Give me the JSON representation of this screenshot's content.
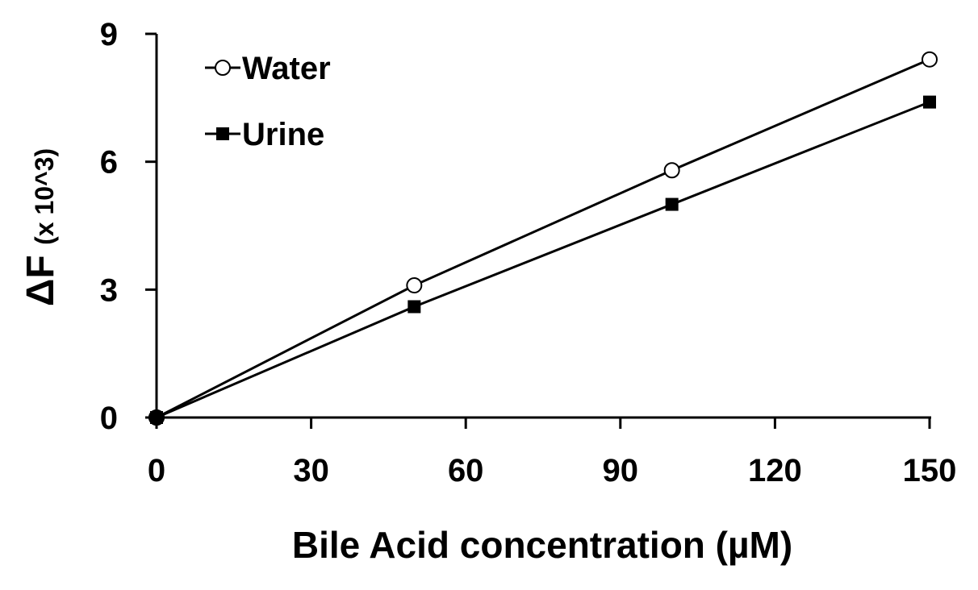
{
  "chart_data": {
    "type": "line",
    "x": [
      0,
      50,
      100,
      150
    ],
    "xticks": [
      0,
      30,
      60,
      90,
      120,
      150
    ],
    "yticks": [
      0,
      3,
      6,
      9
    ],
    "xlim": [
      0,
      150
    ],
    "ylim": [
      0,
      9
    ],
    "xlabel": "Bile Acid concentration (µM)",
    "ylabel_main": "ΔF",
    "ylabel_sub": "(x 10^3)",
    "grid": false,
    "legend_position": "top-left",
    "series": [
      {
        "name": "Water",
        "marker": "open-circle",
        "color": "#000000",
        "values": [
          0,
          3.1,
          5.8,
          8.4
        ]
      },
      {
        "name": "Urine",
        "marker": "filled-square",
        "color": "#000000",
        "values": [
          0,
          2.6,
          5.0,
          7.4
        ]
      }
    ]
  }
}
